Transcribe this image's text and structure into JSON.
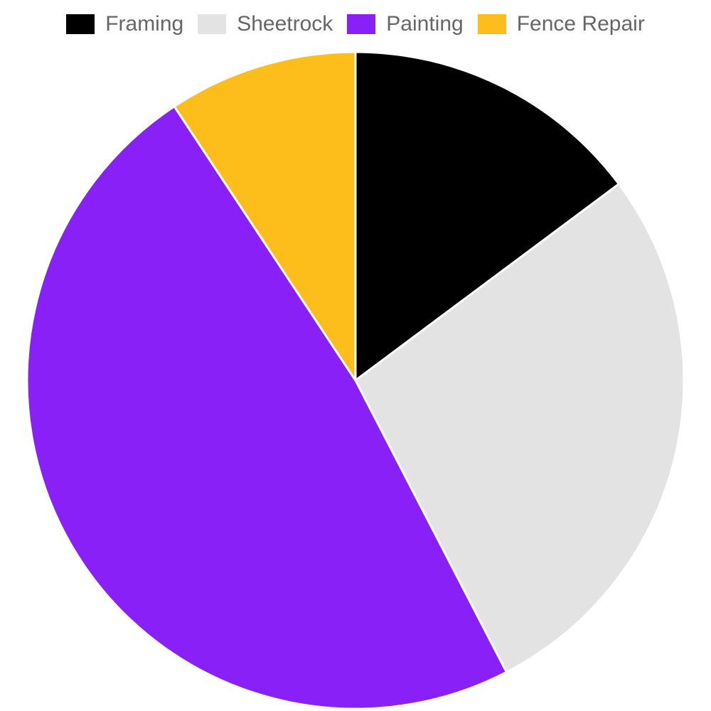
{
  "chart_data": {
    "type": "pie",
    "title": "",
    "legend_position": "top-center",
    "categories": [
      "Framing",
      "Sheetrock",
      "Painting",
      "Fence Repair"
    ],
    "values": [
      14.8,
      27.6,
      48.3,
      9.3
    ],
    "colors": [
      "#000000",
      "#e3e3e3",
      "#8a20f8",
      "#fdbd1b"
    ]
  }
}
